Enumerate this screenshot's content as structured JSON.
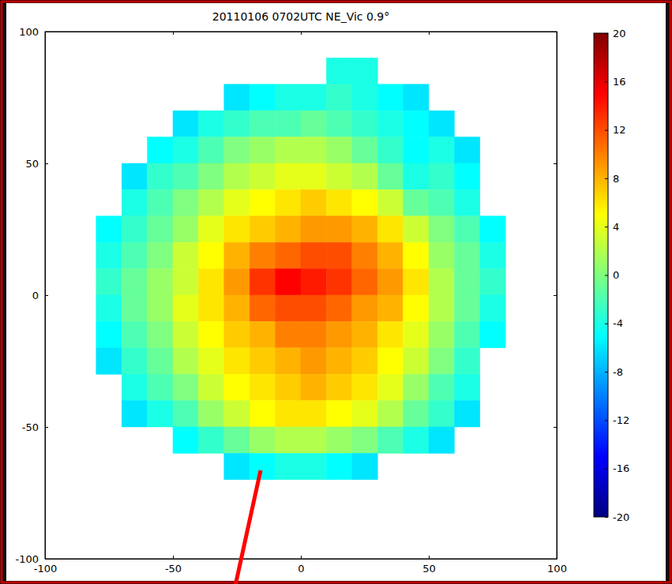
{
  "chart_data": {
    "type": "heatmap",
    "title": "20110106 0702UTC NE_Vic 0.9°",
    "xlim": [
      -100,
      100
    ],
    "ylim": [
      -100,
      100
    ],
    "xticks": [
      -100,
      -50,
      0,
      50,
      100
    ],
    "yticks": [
      -100,
      -50,
      0,
      50,
      100
    ],
    "x_edges": [
      -80,
      -70,
      -60,
      -50,
      -40,
      -30,
      -20,
      -10,
      0,
      10,
      20,
      30,
      40,
      50,
      60,
      70,
      80
    ],
    "y_edges": [
      90,
      80,
      70,
      60,
      50,
      40,
      30,
      20,
      10,
      0,
      -10,
      -20,
      -30,
      -40,
      -50,
      -60,
      -70
    ],
    "cells": [
      [
        null,
        null,
        null,
        null,
        null,
        null,
        null,
        null,
        null,
        -4,
        -4,
        null,
        null,
        null,
        null,
        null
      ],
      [
        null,
        null,
        null,
        null,
        null,
        -6,
        -5,
        -4,
        -4,
        -3,
        -4,
        -5,
        -6,
        null,
        null,
        null
      ],
      [
        null,
        null,
        null,
        -6,
        -4,
        -3,
        -2,
        -2,
        -1,
        -2,
        -3,
        -4,
        -5,
        -6,
        null,
        null
      ],
      [
        null,
        null,
        -5,
        -4,
        -2,
        0,
        1,
        2,
        2,
        1,
        -1,
        -3,
        -5,
        -4,
        -6,
        null
      ],
      [
        null,
        -6,
        -3,
        -2,
        0,
        2,
        3,
        4,
        4,
        3,
        2,
        -1,
        -4,
        -3,
        -5,
        null
      ],
      [
        null,
        -4,
        -2,
        0,
        2,
        4,
        5,
        6,
        7,
        6,
        5,
        3,
        -1,
        -2,
        -4,
        null
      ],
      [
        -5,
        -3,
        -1,
        1,
        4,
        6,
        7,
        8,
        9,
        9,
        8,
        6,
        3,
        0,
        -2,
        -5
      ],
      [
        -4,
        -2,
        0,
        3,
        5,
        8,
        10,
        11,
        12,
        12,
        10,
        8,
        5,
        1,
        -1,
        -4
      ],
      [
        -3,
        -1,
        1,
        3,
        6,
        9,
        13,
        15,
        14,
        13,
        11,
        9,
        6,
        2,
        -1,
        -3
      ],
      [
        -4,
        -1,
        1,
        4,
        6,
        8,
        11,
        12,
        12,
        11,
        9,
        8,
        5,
        2,
        -1,
        -4
      ],
      [
        -5,
        -2,
        0,
        3,
        5,
        7,
        8,
        10,
        10,
        9,
        8,
        6,
        4,
        1,
        -2,
        -5
      ],
      [
        -6,
        -3,
        -1,
        2,
        4,
        6,
        7,
        8,
        9,
        8,
        7,
        5,
        3,
        0,
        -3,
        null
      ],
      [
        null,
        -4,
        -2,
        0,
        3,
        5,
        6,
        7,
        8,
        7,
        6,
        4,
        1,
        -2,
        -4,
        null
      ],
      [
        null,
        -6,
        -4,
        -2,
        1,
        3,
        5,
        6,
        6,
        5,
        4,
        2,
        -1,
        -3,
        -6,
        null
      ],
      [
        null,
        null,
        null,
        -5,
        -3,
        -1,
        1,
        2,
        2,
        1,
        0,
        -2,
        -4,
        -6,
        null,
        null
      ],
      [
        null,
        null,
        null,
        null,
        null,
        -6,
        -5,
        -4,
        -4,
        -5,
        -6,
        null,
        null,
        null,
        null,
        null
      ]
    ],
    "colorbar": {
      "lim": [
        -20,
        20
      ],
      "ticks": [
        -20,
        -16,
        -12,
        -8,
        -4,
        0,
        4,
        8,
        12,
        16,
        20
      ]
    }
  }
}
